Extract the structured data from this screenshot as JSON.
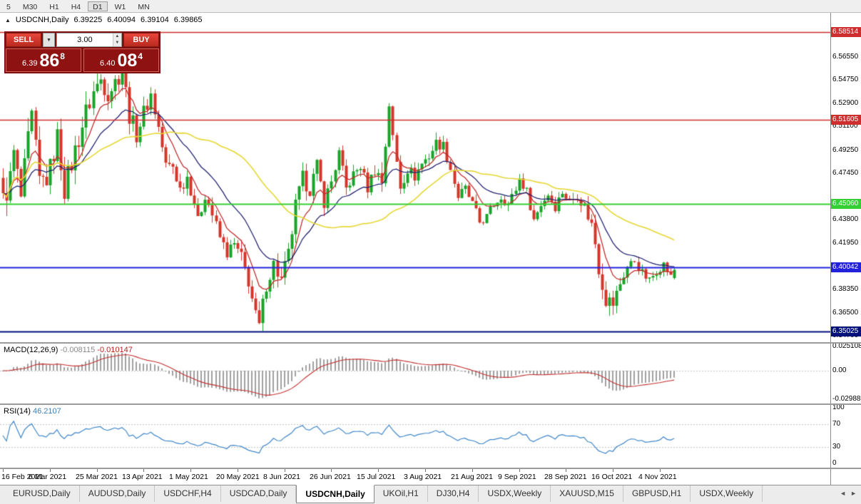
{
  "toolbar": {
    "timeframes": [
      "5",
      "M30",
      "H1",
      "H4",
      "D1",
      "W1",
      "MN"
    ],
    "active": "D1"
  },
  "chart_header": {
    "marker": "▲",
    "symbol": "USDCNH,Daily",
    "open": "6.39225",
    "high": "6.40094",
    "low": "6.39104",
    "close": "6.39865"
  },
  "one_click": {
    "sell_label": "SELL",
    "buy_label": "BUY",
    "volume": "3.00",
    "dropdown_icon": "▼",
    "spin_up_icon": "▲",
    "spin_down_icon": "▼",
    "sell_price_small": "6.39",
    "sell_price_big": "86",
    "sell_price_sup": "8",
    "buy_price_small": "6.40",
    "buy_price_big": "08",
    "buy_price_sup": "4"
  },
  "price_axis": {
    "ticks": [
      "6.56550",
      "6.54750",
      "6.52900",
      "6.51100",
      "6.49250",
      "6.47450",
      "6.43800",
      "6.41950",
      "6.38350",
      "6.36500",
      "6.34700"
    ]
  },
  "levels": [
    {
      "value": 6.58514,
      "label": "6.58514",
      "color": "#cf2e2e",
      "width": 1.4
    },
    {
      "value": 6.51605,
      "label": "6.51605",
      "color": "#cf2e2e",
      "width": 1.4
    },
    {
      "value": 6.4506,
      "label": "6.45060",
      "color": "#33cf33",
      "width": 2
    },
    {
      "value": 6.40042,
      "label": "6.40042",
      "color": "#2222dd",
      "width": 2
    },
    {
      "value": 6.35025,
      "label": "6.35025",
      "color": "#00117d",
      "width": 2
    }
  ],
  "macd": {
    "name": "MACD(12,26,9)",
    "value_main": "-0.008115",
    "value_signal": "-0.010147",
    "axis": [
      [
        "0.025108",
        0.025108
      ],
      [
        "0.00",
        0
      ],
      [
        "-0.029888",
        -0.029888
      ]
    ],
    "histogram_color": "#a0a0a0",
    "signal_color": "#c22f2f"
  },
  "rsi": {
    "name": "RSI(14)",
    "value": "46.2107",
    "period": 14,
    "axis": [
      [
        "100",
        100
      ],
      [
        "70",
        70
      ],
      [
        "30",
        30
      ],
      [
        "0",
        0
      ]
    ],
    "levels": [
      70,
      30
    ],
    "line_color": "#3f87c9"
  },
  "time_axis": {
    "items": [
      [
        "16 Feb 2021",
        0
      ],
      [
        "6 Mar 2021",
        13
      ],
      [
        "25 Mar 2021",
        26
      ],
      [
        "13 Apr 2021",
        39
      ],
      [
        "1 May 2021",
        52
      ],
      [
        "20 May 2021",
        65
      ],
      [
        "8 Jun 2021",
        78
      ],
      [
        "26 Jun 2021",
        91
      ],
      [
        "15 Jul 2021",
        104
      ],
      [
        "3 Aug 2021",
        117
      ],
      [
        "21 Aug 2021",
        130
      ],
      [
        "9 Sep 2021",
        143
      ],
      [
        "28 Sep 2021",
        156
      ],
      [
        "16 Oct 2021",
        169
      ],
      [
        "4 Nov 2021",
        182
      ]
    ]
  },
  "tabs": {
    "items": [
      "EURUSD,Daily",
      "AUDUSD,Daily",
      "USDCHF,H4",
      "USDCAD,Daily",
      "USDCNH,Daily",
      "UKOil,H1",
      "DJ30,H4",
      "USDX,Weekly",
      "XAUUSD,M15",
      "GBPUSD,H1",
      "USDX,Weekly"
    ],
    "active_index": 4,
    "scroll_left_icon": "◄",
    "scroll_right_icon": "►"
  },
  "colors": {
    "bull": "#18a428",
    "bear": "#d4362a",
    "background": "#ffffff"
  },
  "chart_data": {
    "type": "candlestick",
    "symbol": "USDCNH",
    "timeframe": "Daily",
    "title": "USDCNH,Daily",
    "y_range": [
      6.342,
      6.6
    ],
    "macd_range": [
      -0.034,
      0.028
    ],
    "candle_count": 187,
    "last_candle": {
      "open": 6.39225,
      "high": 6.40094,
      "low": 6.39104,
      "close": 6.39865
    },
    "close_anchors": [
      [
        0,
        6.452
      ],
      [
        2,
        6.47
      ],
      [
        3,
        6.49
      ],
      [
        5,
        6.455
      ],
      [
        7,
        6.5
      ],
      [
        8,
        6.518
      ],
      [
        10,
        6.468
      ],
      [
        12,
        6.47
      ],
      [
        13,
        6.478
      ],
      [
        15,
        6.503
      ],
      [
        17,
        6.462
      ],
      [
        20,
        6.492
      ],
      [
        23,
        6.522
      ],
      [
        25,
        6.538
      ],
      [
        27,
        6.548
      ],
      [
        29,
        6.538
      ],
      [
        31,
        6.546
      ],
      [
        33,
        6.556
      ],
      [
        35,
        6.52
      ],
      [
        37,
        6.505
      ],
      [
        39,
        6.522
      ],
      [
        41,
        6.536
      ],
      [
        43,
        6.51
      ],
      [
        45,
        6.48
      ],
      [
        47,
        6.48
      ],
      [
        49,
        6.462
      ],
      [
        51,
        6.472
      ],
      [
        53,
        6.452
      ],
      [
        54,
        6.436
      ],
      [
        56,
        6.458
      ],
      [
        58,
        6.442
      ],
      [
        60,
        6.424
      ],
      [
        62,
        6.412
      ],
      [
        64,
        6.418
      ],
      [
        66,
        6.408
      ],
      [
        68,
        6.39
      ],
      [
        70,
        6.362
      ],
      [
        71,
        6.354
      ],
      [
        73,
        6.388
      ],
      [
        75,
        6.403
      ],
      [
        77,
        6.39
      ],
      [
        79,
        6.41
      ],
      [
        81,
        6.448
      ],
      [
        83,
        6.47
      ],
      [
        85,
        6.462
      ],
      [
        87,
        6.48
      ],
      [
        89,
        6.452
      ],
      [
        91,
        6.468
      ],
      [
        93,
        6.49
      ],
      [
        95,
        6.462
      ],
      [
        97,
        6.473
      ],
      [
        99,
        6.48
      ],
      [
        101,
        6.463
      ],
      [
        103,
        6.478
      ],
      [
        105,
        6.468
      ],
      [
        106,
        6.498
      ],
      [
        107,
        6.53
      ],
      [
        108,
        6.5
      ],
      [
        110,
        6.465
      ],
      [
        112,
        6.478
      ],
      [
        114,
        6.472
      ],
      [
        116,
        6.482
      ],
      [
        118,
        6.488
      ],
      [
        120,
        6.498
      ],
      [
        122,
        6.496
      ],
      [
        124,
        6.478
      ],
      [
        126,
        6.456
      ],
      [
        128,
        6.462
      ],
      [
        130,
        6.45
      ],
      [
        132,
        6.436
      ],
      [
        134,
        6.44
      ],
      [
        136,
        6.45
      ],
      [
        138,
        6.456
      ],
      [
        140,
        6.45
      ],
      [
        142,
        6.462
      ],
      [
        143,
        6.47
      ],
      [
        145,
        6.46
      ],
      [
        147,
        6.438
      ],
      [
        149,
        6.45
      ],
      [
        151,
        6.458
      ],
      [
        153,
        6.448
      ],
      [
        155,
        6.46
      ],
      [
        157,
        6.452
      ],
      [
        159,
        6.458
      ],
      [
        161,
        6.448
      ],
      [
        163,
        6.434
      ],
      [
        164,
        6.42
      ],
      [
        165,
        6.4
      ],
      [
        166,
        6.388
      ],
      [
        167,
        6.376
      ],
      [
        169,
        6.372
      ],
      [
        171,
        6.388
      ],
      [
        173,
        6.401
      ],
      [
        175,
        6.406
      ],
      [
        177,
        6.396
      ],
      [
        179,
        6.39
      ],
      [
        181,
        6.398
      ],
      [
        183,
        6.403
      ],
      [
        185,
        6.393
      ],
      [
        186,
        6.39865
      ]
    ],
    "vol_anchors": [
      [
        0,
        0.03
      ],
      [
        8,
        0.024
      ],
      [
        20,
        0.026
      ],
      [
        34,
        0.022
      ],
      [
        45,
        0.016
      ],
      [
        60,
        0.014
      ],
      [
        70,
        0.018
      ],
      [
        80,
        0.02
      ],
      [
        90,
        0.014
      ],
      [
        100,
        0.012
      ],
      [
        107,
        0.026
      ],
      [
        112,
        0.014
      ],
      [
        125,
        0.012
      ],
      [
        140,
        0.011
      ],
      [
        152,
        0.01
      ],
      [
        163,
        0.016
      ],
      [
        167,
        0.02
      ],
      [
        172,
        0.012
      ],
      [
        186,
        0.009
      ]
    ],
    "ma": [
      {
        "name": "fast",
        "type": "ema",
        "period": 8,
        "color": "#c22a2a"
      },
      {
        "name": "slow",
        "type": "ema",
        "period": 20,
        "color": "#1f1f6e"
      },
      {
        "name": "long",
        "type": "sma",
        "period": 45,
        "color": "#e6d835"
      }
    ]
  }
}
